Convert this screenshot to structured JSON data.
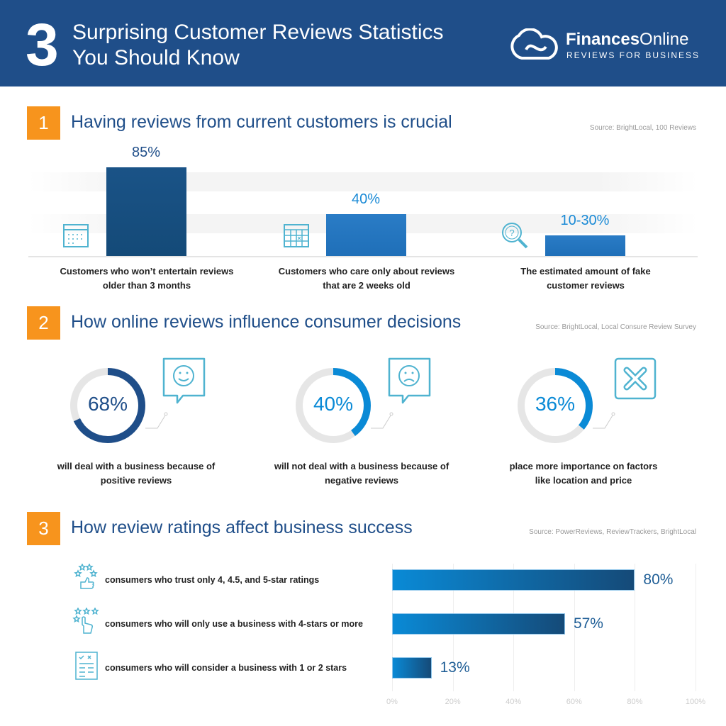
{
  "header": {
    "number": "3",
    "title_line1": "Surprising Customer Reviews Statistics",
    "title_line2": "You Should Know",
    "brand_bold": "Finances",
    "brand_light": "Online",
    "tagline": "REVIEWS FOR BUSINESS"
  },
  "colors": {
    "header_bg": "#1f4e89",
    "accent_orange": "#f7941d",
    "dark_blue": "#1a5387",
    "mid_blue": "#2a7cc6",
    "light_blue": "#0a8ad6",
    "icon_teal": "#4fb3d0"
  },
  "sections": [
    {
      "number": "1",
      "title": "Having reviews from current customers is crucial",
      "source": "Source: BrightLocal, 100 Reviews"
    },
    {
      "number": "2",
      "title": "How online reviews influence consumer decisions",
      "source": "Source: BrightLocal, Local Consure Review Survey"
    },
    {
      "number": "3",
      "title": "How review ratings affect business success",
      "source": "Source: PowerReviews, ReviewTrackers, BrightLocal"
    }
  ],
  "chart_data": [
    {
      "type": "bar",
      "orientation": "vertical",
      "grid": false,
      "categories": [
        "Customers who won't entertain reviews older than 3 months",
        "Customers who care only about reviews that are 2 weeks old",
        "The estimated amount of fake customer  reviews"
      ],
      "caption_lines": [
        [
          "Customers who won’t entertain reviews",
          "older than 3 months"
        ],
        [
          "Customers who care only about reviews",
          "that are 2 weeks old"
        ],
        [
          "The estimated amount of fake",
          "customer  reviews"
        ]
      ],
      "values": [
        85,
        40,
        [
          10,
          30
        ]
      ],
      "data_labels": [
        "85%",
        "40%",
        "10-30%"
      ],
      "icons": [
        "calendar-icon",
        "calendar-x-icon",
        "magnifier-question-icon"
      ],
      "bar_colors": [
        "#1a5387",
        "#2a7cc6",
        "#2a7cc6"
      ],
      "label_colors": [
        "#1f4e89",
        "#1a8ad6",
        "#1a8ad6"
      ]
    },
    {
      "type": "pie",
      "style": "donut",
      "items": [
        {
          "value": 68,
          "label": "68%",
          "caption_lines": [
            "will deal with a business because of",
            "positive reviews"
          ],
          "color": "#1f4e89",
          "icon": "smiley-happy-icon"
        },
        {
          "value": 40,
          "label": "40%",
          "caption_lines": [
            "will not deal with a business because of",
            "negative reviews"
          ],
          "color": "#0a8ad6",
          "icon": "smiley-sad-icon"
        },
        {
          "value": 36,
          "label": "36%",
          "caption_lines": [
            "place more importance on factors",
            "like location and price"
          ],
          "color": "#0a8ad6",
          "icon": "x-mark-icon"
        }
      ],
      "track_color": "#e6e6e6"
    },
    {
      "type": "bar",
      "orientation": "horizontal",
      "grid": true,
      "xlim": [
        0,
        100
      ],
      "x_ticks": [
        "0%",
        "20%",
        "40%",
        "60%",
        "80%",
        "100%"
      ],
      "categories": [
        "consumers who trust only 4, 4.5, and 5-star ratings",
        "consumers who will only use a business with 4-stars or more",
        "consumers who will consider a business with 1 or 2 stars"
      ],
      "values": [
        80,
        57,
        13
      ],
      "data_labels": [
        "80%",
        "57%",
        "13%"
      ],
      "icons": [
        "stars-thumbs-up-icon",
        "stars-pointer-icon",
        "checklist-icon"
      ]
    }
  ]
}
